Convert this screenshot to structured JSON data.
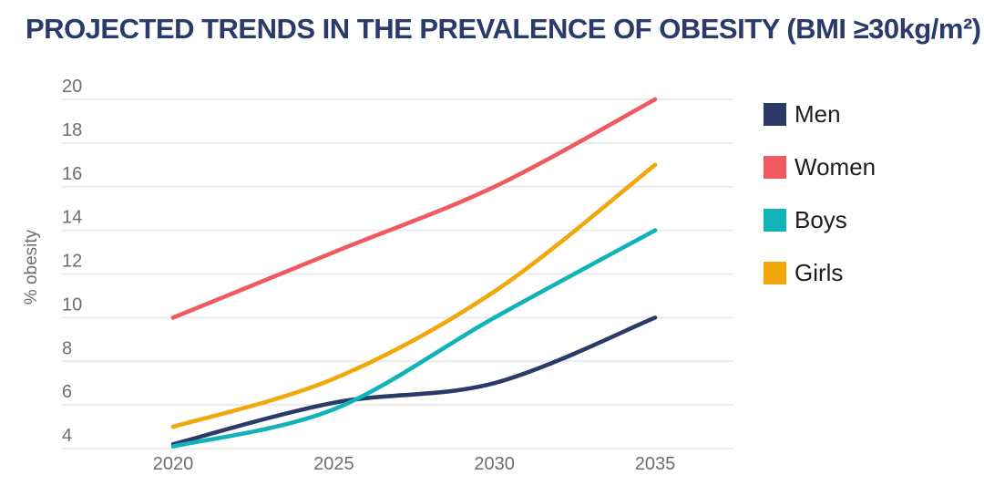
{
  "title": "PROJECTED TRENDS IN THE PREVALENCE OF OBESITY (BMI ≥30kg/m²)",
  "chart_data": {
    "type": "line",
    "x": [
      2020,
      2025,
      2030,
      2035
    ],
    "series": [
      {
        "name": "Men",
        "color": "#2c3a68",
        "values": [
          4.2,
          6.1,
          7.0,
          10
        ]
      },
      {
        "name": "Women",
        "color": "#ee5a60",
        "values": [
          10,
          13,
          16,
          20
        ]
      },
      {
        "name": "Boys",
        "color": "#10b3b8",
        "values": [
          4.1,
          5.8,
          10,
          14
        ]
      },
      {
        "name": "Girls",
        "color": "#f0a80b",
        "values": [
          5,
          7.2,
          11.2,
          17
        ]
      }
    ],
    "title": "PROJECTED TRENDS IN THE PREVALENCE OF OBESITY (BMI ≥30kg/m²)",
    "xlabel": "",
    "ylabel": "% obesity",
    "ylim": [
      4,
      20
    ],
    "yticks": [
      4,
      6,
      8,
      10,
      12,
      14,
      16,
      18,
      20
    ],
    "grid": "horizontal-only",
    "legend_position": "right",
    "curve": "smooth"
  },
  "colors": {
    "background": "#ffffff",
    "title": "#293a6b",
    "grid": "#ececec",
    "axis_text": "#6e6e6e",
    "legend_text": "#1d1d1d"
  }
}
